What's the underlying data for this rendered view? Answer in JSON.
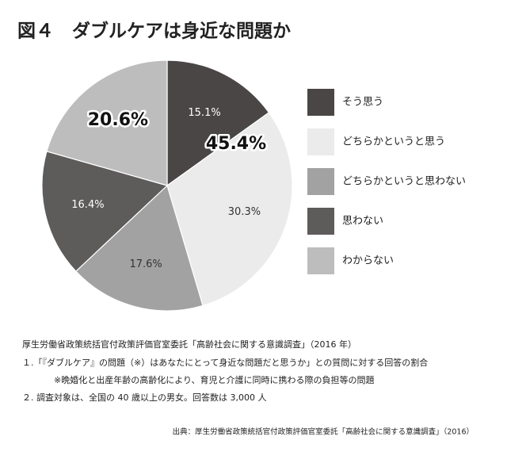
{
  "chart_data": {
    "type": "pie",
    "title": "図４　ダブルケアは身近な問題か",
    "categories": [
      "そう思う",
      "どちらかというと思う",
      "どちらかというと思わない",
      "思わない",
      "わからない"
    ],
    "values": [
      15.1,
      30.3,
      17.6,
      16.4,
      20.6
    ],
    "value_labels": [
      "15.1%",
      "30.3%",
      "17.6%",
      "16.4%",
      "20.6%"
    ],
    "colors": [
      "#4a4646",
      "#ebebeb",
      "#a2a2a2",
      "#5e5b5b",
      "#bdbdbd"
    ],
    "annotations": [
      {
        "text": "45.4%"
      }
    ],
    "legend": "right"
  },
  "notes": {
    "heading": "厚生労働省政策統括官付政策評価官室委託「高齢社会に関する意識調査」（2016 年）",
    "lines": [
      "１.「『ダブルケア』の問題（※）はあなたにとって身近な問題だと思うか」との質問に対する回答の割合",
      "※晩婚化と出産年齢の高齢化により、育児と介護に同時に携わる際の負担等の問題",
      "２. 調査対象は、全国の 40 歳以上の男女。回答数は 3,000 人"
    ],
    "source": "出典：厚生労働省政策統括官付政策評価官室委託「高齢社会に関する意識調査」（2016）"
  }
}
